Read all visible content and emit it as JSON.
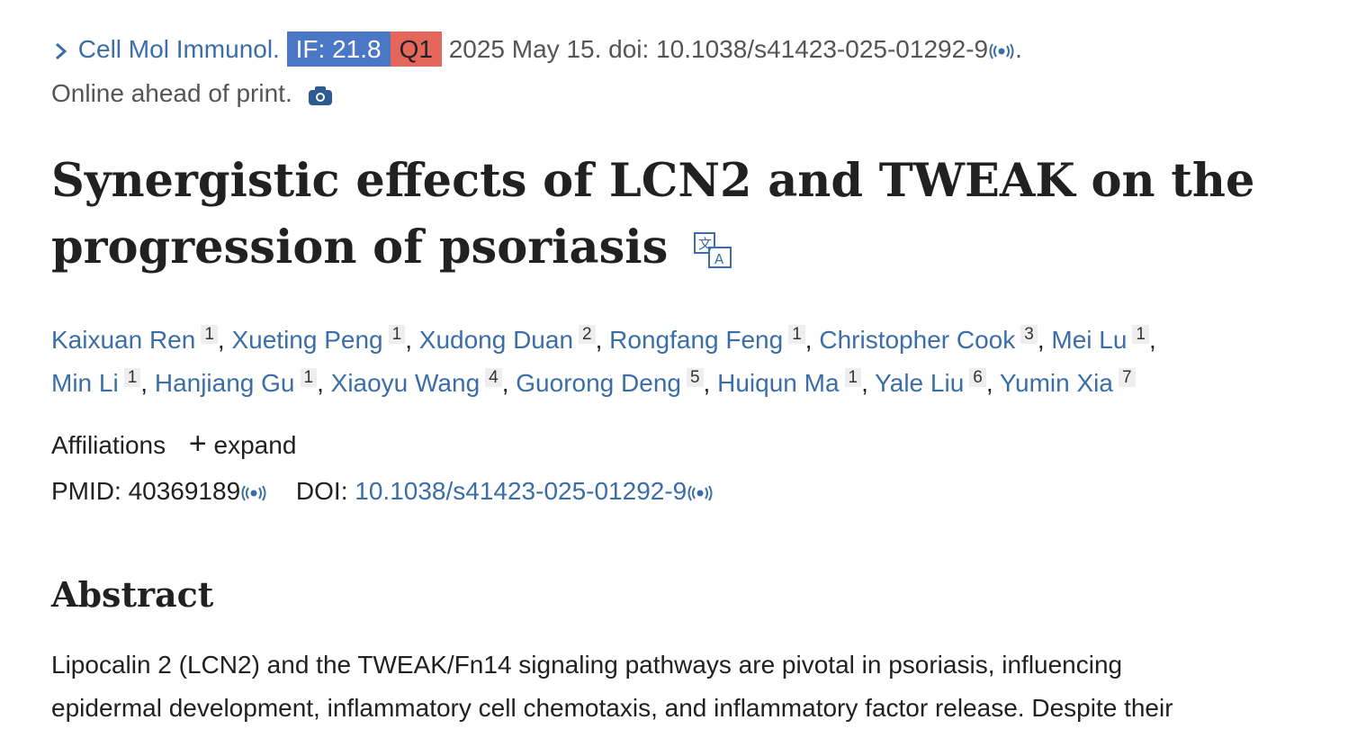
{
  "header": {
    "journal": "Cell Mol Immunol.",
    "impact_factor": "IF: 21.8",
    "quartile": "Q1",
    "citation": "2025 May 15. doi: 10.1038/s41423-025-01292-9",
    "citation_end": ".",
    "status": "Online ahead of print."
  },
  "title_lines": [
    "Synergistic effects of LCN2 and TWEAK on the",
    "progression of psoriasis"
  ],
  "author_separator": ",",
  "authors": [
    {
      "name": "Kaixuan Ren",
      "aff": "1"
    },
    {
      "name": "Xueting Peng",
      "aff": "1"
    },
    {
      "name": "Xudong Duan",
      "aff": "2"
    },
    {
      "name": "Rongfang Feng",
      "aff": "1"
    },
    {
      "name": "Christopher Cook",
      "aff": "3"
    },
    {
      "name": "Mei Lu",
      "aff": "1"
    },
    {
      "name": "Min Li",
      "aff": "1"
    },
    {
      "name": "Hanjiang Gu",
      "aff": "1"
    },
    {
      "name": "Xiaoyu Wang",
      "aff": "4"
    },
    {
      "name": "Guorong Deng",
      "aff": "5"
    },
    {
      "name": "Huiqun Ma",
      "aff": "1"
    },
    {
      "name": "Yale Liu",
      "aff": "6"
    },
    {
      "name": "Yumin Xia",
      "aff": "7"
    }
  ],
  "affiliations": {
    "label": "Affiliations",
    "toggle": "expand"
  },
  "identifiers": {
    "pmid_label": "PMID:",
    "pmid": "40369189",
    "doi_label": "DOI:",
    "doi": "10.1038/s41423-025-01292-9"
  },
  "abstract": {
    "heading": "Abstract",
    "lines": [
      "Lipocalin 2 (LCN2) and the TWEAK/Fn14 signaling pathways are pivotal in psoriasis, influencing",
      "epidermal development, inflammatory cell chemotaxis, and inflammatory factor release. Despite their"
    ]
  }
}
